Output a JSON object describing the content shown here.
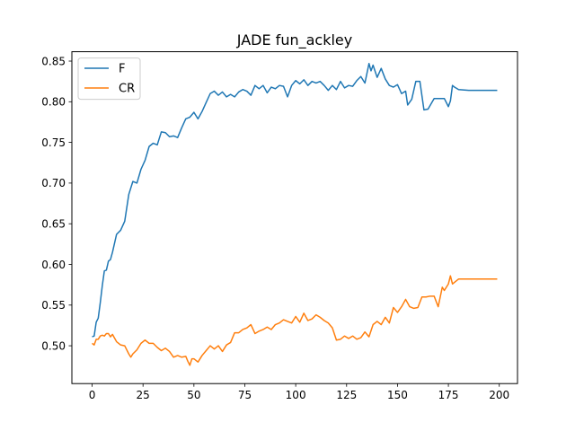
{
  "chart_data": {
    "type": "line",
    "title": "JADE fun_ackley",
    "xlabel": "",
    "ylabel": "",
    "xlim": [
      -9.95,
      208.95
    ],
    "ylim": [
      0.4535,
      0.8615
    ],
    "xticks": [
      0,
      25,
      50,
      75,
      100,
      125,
      150,
      175,
      200
    ],
    "yticks": [
      0.5,
      0.55,
      0.6,
      0.65,
      0.7,
      0.75,
      0.8,
      0.85
    ],
    "ytick_labels": [
      "0.50",
      "0.55",
      "0.60",
      "0.65",
      "0.70",
      "0.75",
      "0.80",
      "0.85"
    ],
    "grid": false,
    "legend_position": "upper-left",
    "series": [
      {
        "name": "F",
        "color": "#1f77b4",
        "x": [
          0,
          1,
          2,
          3,
          4,
          5,
          6,
          7,
          8,
          9,
          10,
          12,
          14,
          16,
          18,
          20,
          22,
          24,
          26,
          28,
          30,
          32,
          34,
          36,
          38,
          40,
          42,
          44,
          46,
          48,
          50,
          52,
          54,
          56,
          58,
          60,
          62,
          64,
          66,
          68,
          70,
          72,
          74,
          76,
          78,
          80,
          82,
          84,
          86,
          88,
          90,
          92,
          94,
          96,
          98,
          100,
          102,
          104,
          106,
          108,
          110,
          112,
          114,
          116,
          118,
          120,
          122,
          124,
          126,
          128,
          130,
          132,
          134,
          136,
          137,
          138,
          140,
          142,
          144,
          146,
          148,
          150,
          152,
          154,
          155,
          157,
          159,
          161,
          163,
          165,
          168,
          170,
          172,
          173,
          175,
          176,
          177,
          178,
          180,
          185,
          190,
          195,
          199
        ],
        "y": [
          0.511,
          0.512,
          0.529,
          0.534,
          0.553,
          0.574,
          0.592,
          0.593,
          0.604,
          0.606,
          0.615,
          0.637,
          0.642,
          0.653,
          0.686,
          0.702,
          0.7,
          0.717,
          0.728,
          0.745,
          0.749,
          0.747,
          0.763,
          0.762,
          0.757,
          0.758,
          0.756,
          0.768,
          0.779,
          0.781,
          0.787,
          0.779,
          0.788,
          0.799,
          0.81,
          0.813,
          0.808,
          0.812,
          0.806,
          0.809,
          0.806,
          0.812,
          0.815,
          0.813,
          0.808,
          0.82,
          0.816,
          0.82,
          0.811,
          0.818,
          0.816,
          0.82,
          0.819,
          0.806,
          0.82,
          0.826,
          0.822,
          0.827,
          0.82,
          0.825,
          0.823,
          0.825,
          0.82,
          0.814,
          0.82,
          0.815,
          0.825,
          0.817,
          0.82,
          0.819,
          0.826,
          0.831,
          0.823,
          0.847,
          0.838,
          0.845,
          0.83,
          0.841,
          0.828,
          0.82,
          0.818,
          0.821,
          0.81,
          0.813,
          0.796,
          0.803,
          0.825,
          0.825,
          0.79,
          0.791,
          0.804,
          0.804,
          0.804,
          0.804,
          0.794,
          0.801,
          0.82,
          0.818,
          0.815,
          0.814,
          0.814,
          0.814,
          0.814
        ]
      },
      {
        "name": "CR",
        "color": "#ff7f0e",
        "x": [
          0,
          1,
          2,
          3,
          4,
          5,
          6,
          7,
          8,
          9,
          10,
          12,
          14,
          16,
          18,
          19,
          20,
          22,
          24,
          26,
          28,
          30,
          32,
          34,
          36,
          38,
          40,
          42,
          44,
          46,
          47,
          48,
          49,
          50,
          52,
          54,
          56,
          58,
          60,
          62,
          64,
          66,
          68,
          70,
          72,
          74,
          76,
          78,
          80,
          82,
          84,
          86,
          88,
          90,
          92,
          94,
          96,
          98,
          100,
          102,
          104,
          106,
          108,
          110,
          112,
          114,
          116,
          118,
          120,
          122,
          124,
          126,
          128,
          130,
          132,
          134,
          136,
          138,
          140,
          142,
          144,
          146,
          148,
          150,
          152,
          154,
          156,
          158,
          160,
          162,
          164,
          166,
          168,
          170,
          172,
          173,
          175,
          176,
          177,
          178,
          180,
          185,
          190,
          195,
          199
        ],
        "y": [
          0.503,
          0.501,
          0.508,
          0.508,
          0.512,
          0.513,
          0.512,
          0.515,
          0.515,
          0.511,
          0.514,
          0.505,
          0.501,
          0.5,
          0.49,
          0.486,
          0.49,
          0.495,
          0.503,
          0.507,
          0.503,
          0.503,
          0.498,
          0.494,
          0.497,
          0.493,
          0.486,
          0.488,
          0.486,
          0.487,
          0.481,
          0.476,
          0.484,
          0.484,
          0.48,
          0.488,
          0.494,
          0.5,
          0.496,
          0.5,
          0.493,
          0.501,
          0.504,
          0.516,
          0.516,
          0.52,
          0.522,
          0.526,
          0.515,
          0.518,
          0.52,
          0.523,
          0.52,
          0.526,
          0.528,
          0.532,
          0.53,
          0.528,
          0.536,
          0.529,
          0.54,
          0.531,
          0.533,
          0.538,
          0.535,
          0.531,
          0.528,
          0.522,
          0.507,
          0.508,
          0.512,
          0.509,
          0.512,
          0.508,
          0.51,
          0.517,
          0.511,
          0.526,
          0.53,
          0.526,
          0.535,
          0.528,
          0.547,
          0.541,
          0.548,
          0.557,
          0.548,
          0.546,
          0.547,
          0.56,
          0.56,
          0.561,
          0.561,
          0.548,
          0.572,
          0.568,
          0.576,
          0.586,
          0.576,
          0.578,
          0.582,
          0.582,
          0.582,
          0.582,
          0.582
        ]
      }
    ]
  }
}
